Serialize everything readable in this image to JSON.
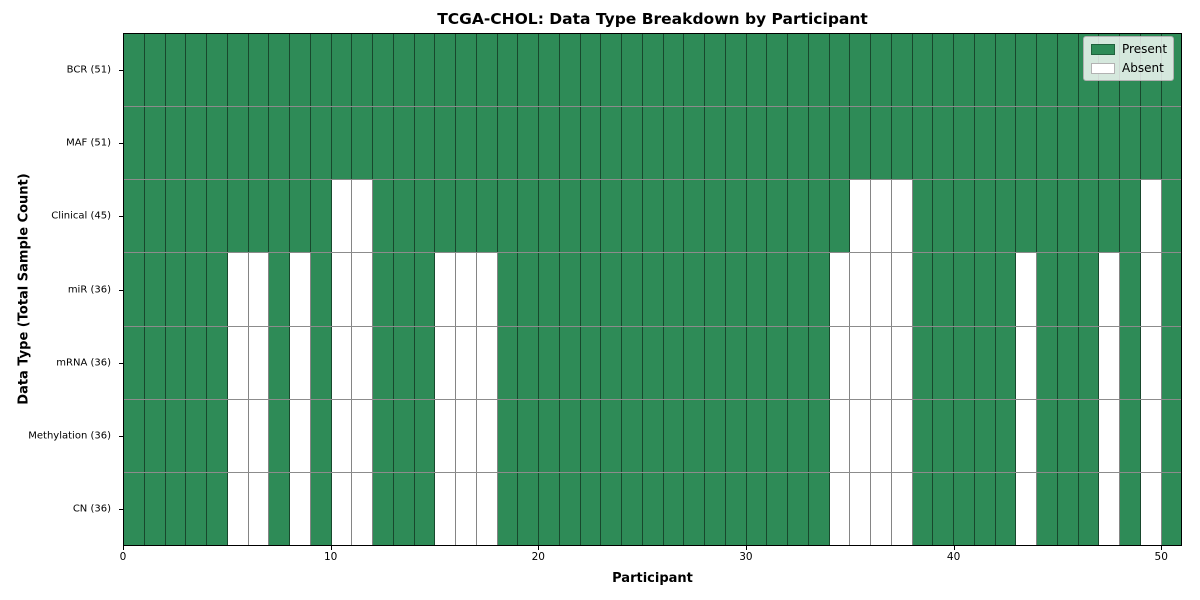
{
  "title": "TCGA-CHOL: Data Type Breakdown by Participant",
  "colors": {
    "present": "#2e8b57",
    "absent": "#ffffff",
    "cell_edge": "rgba(0,0,0,0.48)",
    "axis": "#000000"
  },
  "chart_data": {
    "type": "heatmap",
    "title": "TCGA-CHOL: Data Type Breakdown by Participant",
    "xlabel": "Participant",
    "ylabel": "Data Type (Total Sample Count)",
    "x_range": [
      0,
      51
    ],
    "n_participants": 51,
    "xticks": [
      0,
      10,
      20,
      30,
      40,
      50
    ],
    "grid": "cell-borders",
    "legend_position": "upper-right",
    "legend": [
      {
        "label": "Present",
        "color": "#2e8b57"
      },
      {
        "label": "Absent",
        "color": "#ffffff"
      }
    ],
    "rows": [
      {
        "label": "BCR (51)",
        "present_count": 51,
        "absent_participants": []
      },
      {
        "label": "MAF (51)",
        "present_count": 51,
        "absent_participants": []
      },
      {
        "label": "Clinical (45)",
        "present_count": 45,
        "absent_participants": [
          10,
          11,
          35,
          36,
          37,
          49
        ]
      },
      {
        "label": "miR (36)",
        "present_count": 36,
        "absent_participants": [
          5,
          6,
          8,
          10,
          11,
          15,
          16,
          17,
          34,
          35,
          36,
          37,
          43,
          47,
          49
        ]
      },
      {
        "label": "mRNA (36)",
        "present_count": 36,
        "absent_participants": [
          5,
          6,
          8,
          10,
          11,
          15,
          16,
          17,
          34,
          35,
          36,
          37,
          43,
          47,
          49
        ]
      },
      {
        "label": "Methylation (36)",
        "present_count": 36,
        "absent_participants": [
          5,
          6,
          8,
          10,
          11,
          15,
          16,
          17,
          34,
          35,
          36,
          37,
          43,
          47,
          49
        ]
      },
      {
        "label": "CN (36)",
        "present_count": 36,
        "absent_participants": [
          5,
          6,
          8,
          10,
          11,
          15,
          16,
          17,
          34,
          35,
          36,
          37,
          43,
          47,
          49
        ]
      }
    ]
  }
}
